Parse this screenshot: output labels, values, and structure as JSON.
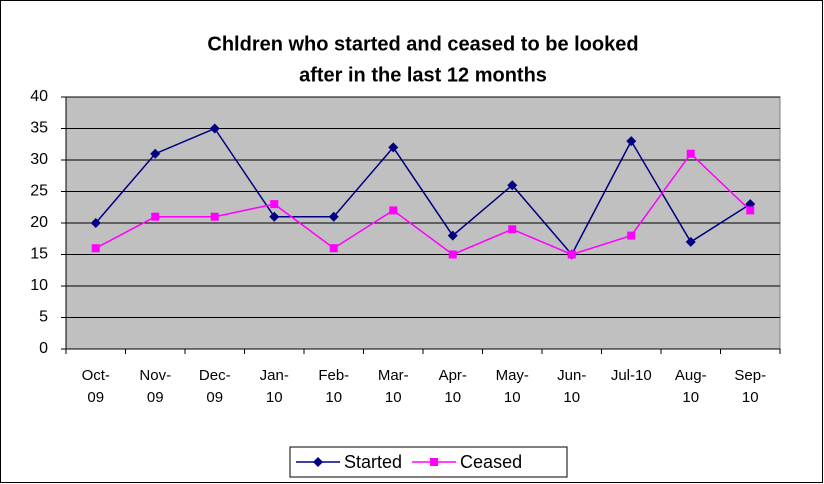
{
  "chart_data": {
    "type": "line",
    "title": [
      "Chldren who started and ceased to be looked",
      "after in the last 12 months"
    ],
    "categories": [
      "Oct-09",
      "Nov-09",
      "Dec-09",
      "Jan-10",
      "Feb-10",
      "Mar-10",
      "Apr-10",
      "May-10",
      "Jun-10",
      "Jul-10",
      "Aug-10",
      "Sep-10"
    ],
    "series": [
      {
        "name": "Started",
        "color": "#000080",
        "marker": "diamond",
        "values": [
          20,
          31,
          35,
          21,
          21,
          32,
          18,
          26,
          15,
          33,
          17,
          23
        ]
      },
      {
        "name": "Ceased",
        "color": "#ff00ff",
        "marker": "square",
        "values": [
          16,
          21,
          21,
          23,
          16,
          22,
          15,
          19,
          15,
          18,
          31,
          22
        ]
      }
    ],
    "ylim": [
      0,
      40
    ],
    "yticks": [
      0,
      5,
      10,
      15,
      20,
      25,
      30,
      35,
      40
    ],
    "grid": true,
    "legend": "bottom"
  }
}
